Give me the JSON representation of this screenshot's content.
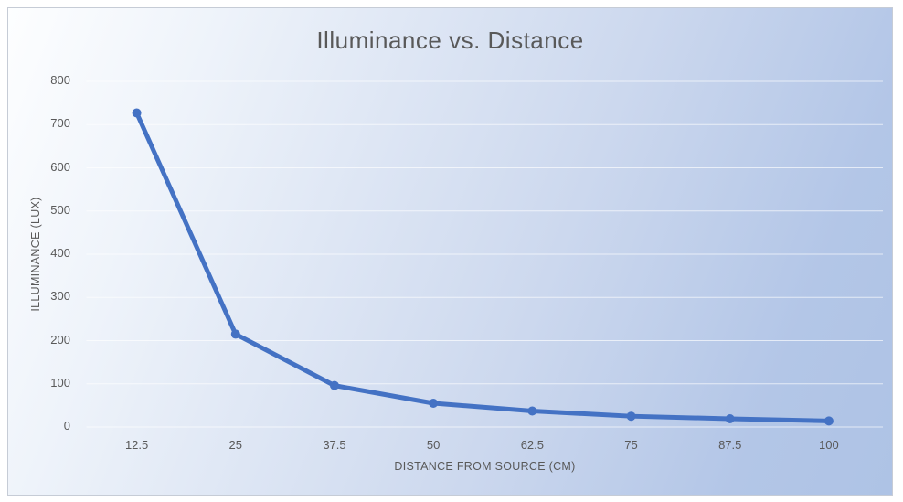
{
  "chart_data": {
    "type": "line",
    "title": "Illuminance vs. Distance",
    "xlabel": "DISTANCE FROM SOURCE (CM)",
    "ylabel": "ILLUMINANCE (LUX)",
    "categories": [
      "12.5",
      "25",
      "37.5",
      "50",
      "62.5",
      "75",
      "87.5",
      "100"
    ],
    "values": [
      727,
      215,
      96,
      55,
      37,
      25,
      19,
      14
    ],
    "yticks": [
      0,
      100,
      200,
      300,
      400,
      500,
      600,
      700,
      800
    ],
    "ylim": [
      0,
      800
    ],
    "grid": true,
    "legend": "none",
    "markers": true,
    "colors": {
      "series": "#4472C4",
      "text": "#595959",
      "gridline": "rgba(255,255,255,0.65)",
      "background_top_left": "#fdfeff",
      "background_bottom_right": "#aec3e5",
      "frame_border": "#c6ccd6"
    }
  }
}
